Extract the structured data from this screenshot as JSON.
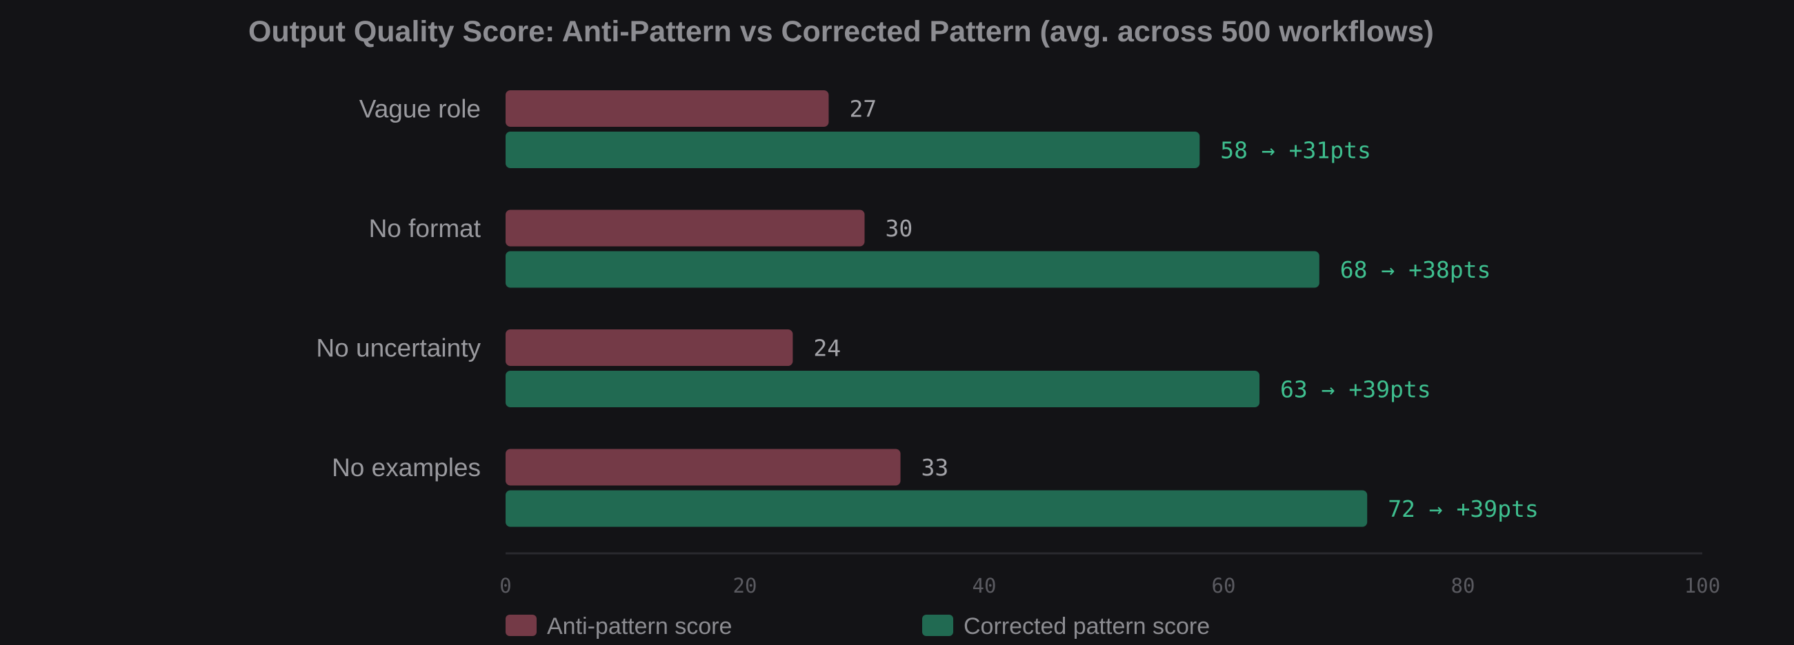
{
  "chart_data": {
    "type": "bar",
    "orientation": "horizontal",
    "title": "Output Quality Score: Anti-Pattern vs Corrected Pattern (avg. across 500 workflows)",
    "categories": [
      "Vague role",
      "No format",
      "No uncertainty",
      "No examples"
    ],
    "series": [
      {
        "name": "Anti-pattern score",
        "values": [
          27,
          30,
          24,
          33
        ],
        "labels": [
          "27",
          "30",
          "24",
          "33"
        ],
        "color": "#743a47"
      },
      {
        "name": "Corrected pattern score",
        "values": [
          58,
          68,
          63,
          72
        ],
        "labels": [
          "58 → +31pts",
          "68 → +38pts",
          "63 → +39pts",
          "72 → +39pts"
        ],
        "color": "#216a52"
      }
    ],
    "xlim": [
      0,
      100
    ],
    "xticks": [
      "0",
      "20",
      "40",
      "60",
      "80",
      "100"
    ],
    "grid": false,
    "legend_position": "bottom-left"
  }
}
